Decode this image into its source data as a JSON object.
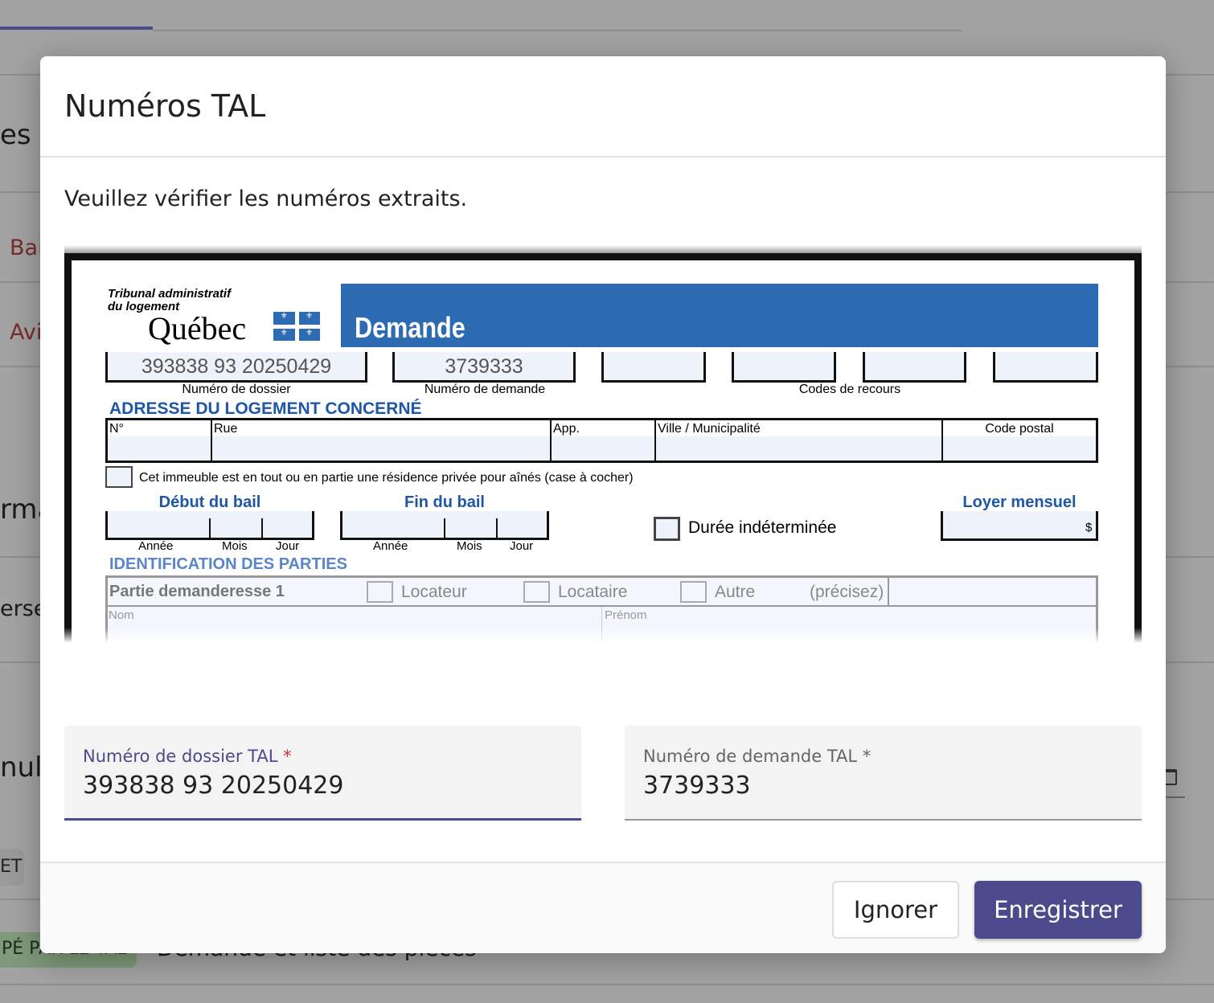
{
  "background": {
    "fragments": [
      "es",
      "Bai",
      "Avi",
      "rma",
      "erse",
      "nul"
    ],
    "badge_partial": "ET",
    "status_badge": "PÉ PAR LE TAL",
    "row_title": "Demande et liste des pièces",
    "accent": "#4a4a8c"
  },
  "modal": {
    "title": "Numéros TAL",
    "subtitle": "Veuillez vérifier les numéros extraits.",
    "document": {
      "org_line1": "Tribunal administratif",
      "org_line2": "du logement",
      "logo": "Québec",
      "banner": "Demande",
      "dossier_value": "393838 93 20250429",
      "demande_value": "3739333",
      "dossier_label": "Numéro de dossier",
      "demande_label": "Numéro de demande",
      "recours_label": "Codes de recours",
      "address_heading": "ADRESSE DU LOGEMENT CONCERNÉ",
      "address_cols": [
        "N°",
        "Rue",
        "App.",
        "Ville / Municipalité",
        "Code postal"
      ],
      "rpa_checkbox": "Cet immeuble est en tout ou en partie une résidence privée pour aînés (case à cocher)",
      "debut_bail": "Début du bail",
      "fin_bail": "Fin du bail",
      "annee": "Année",
      "mois": "Mois",
      "jour": "Jour",
      "duree": "Durée indéterminée",
      "loyer": "Loyer mensuel",
      "dollar": "$",
      "parties_heading": "IDENTIFICATION DES PARTIES",
      "partie": "Partie demanderesse 1",
      "locateur": "Locateur",
      "locataire": "Locataire",
      "autre": "Autre",
      "precisez": "(précisez)",
      "nom": "Nom",
      "prenom": "Prénom"
    },
    "fields": {
      "dossier": {
        "label": "Numéro de dossier TAL",
        "required": "*",
        "value": "393838 93 20250429"
      },
      "demande": {
        "label": "Numéro de demande TAL *",
        "value": "3739333"
      }
    },
    "buttons": {
      "ignore": "Ignorer",
      "save": "Enregistrer"
    }
  }
}
